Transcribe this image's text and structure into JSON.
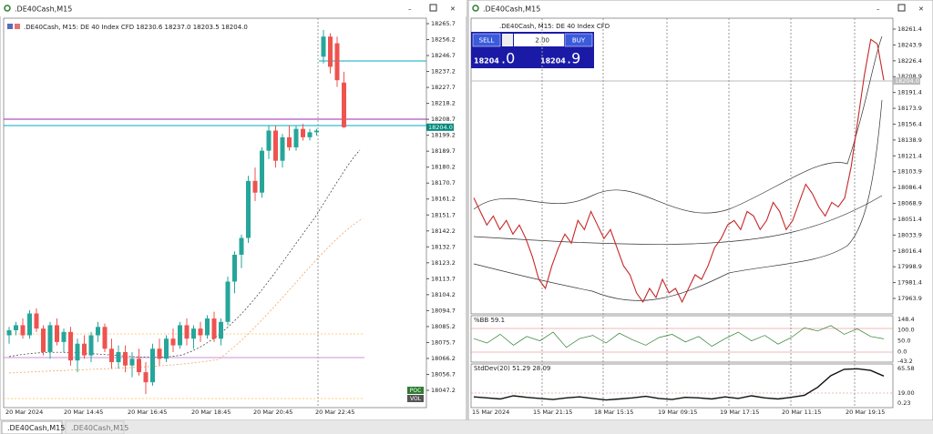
{
  "windows": [
    {
      "title": ".DE40Cash,M15",
      "info": ".DE40Cash, M15:  DE 40 Index CFD  18230.6 18237.0 18203.5 18204.0",
      "price_axis": [
        "18265.7",
        "18256.2",
        "18246.7",
        "18237.2",
        "18227.7",
        "18218.2",
        "18208.7",
        "18199.2",
        "18189.7",
        "18180.2",
        "18170.7",
        "18161.2",
        "18151.7",
        "18142.2",
        "18132.7",
        "18123.2",
        "18113.7",
        "18104.2",
        "18094.7",
        "18085.2",
        "18075.7",
        "18066.2",
        "18056.7",
        "18047.2"
      ],
      "current_price": "18204.0",
      "time_labels": [
        "20 Mar 2024",
        "20 Mar 14:45",
        "20 Mar 16:45",
        "20 Mar 18:45",
        "20 Mar 20:45",
        "20 Mar 22:45"
      ],
      "buttons": [
        "POC",
        "VOL"
      ],
      "candles": [
        [
          18080,
          18085,
          18075,
          18083
        ],
        [
          18083,
          18088,
          18080,
          18086
        ],
        [
          18086,
          18090,
          18078,
          18080
        ],
        [
          18080,
          18095,
          18078,
          18093
        ],
        [
          18093,
          18096,
          18082,
          18084
        ],
        [
          18084,
          18086,
          18068,
          18070
        ],
        [
          18070,
          18088,
          18066,
          18086
        ],
        [
          18086,
          18090,
          18074,
          18076
        ],
        [
          18076,
          18084,
          18070,
          18082
        ],
        [
          18082,
          18085,
          18062,
          18065
        ],
        [
          18065,
          18078,
          18058,
          18075
        ],
        [
          18075,
          18080,
          18066,
          18068
        ],
        [
          18068,
          18082,
          18064,
          18080
        ],
        [
          18080,
          18088,
          18076,
          18085
        ],
        [
          18085,
          18087,
          18070,
          18072
        ],
        [
          18072,
          18078,
          18060,
          18064
        ],
        [
          18064,
          18074,
          18060,
          18070
        ],
        [
          18070,
          18074,
          18058,
          18062
        ],
        [
          18062,
          18070,
          18055,
          18066
        ],
        [
          18066,
          18072,
          18056,
          18058
        ],
        [
          18058,
          18064,
          18045,
          18052
        ],
        [
          18052,
          18075,
          18050,
          18072
        ],
        [
          18072,
          18078,
          18062,
          18066
        ],
        [
          18066,
          18080,
          18064,
          18078
        ],
        [
          18078,
          18084,
          18070,
          18074
        ],
        [
          18074,
          18088,
          18072,
          18086
        ],
        [
          18086,
          18090,
          18074,
          18078
        ],
        [
          18078,
          18086,
          18072,
          18084
        ],
        [
          18084,
          18088,
          18076,
          18080
        ],
        [
          18080,
          18092,
          18078,
          18090
        ],
        [
          18090,
          18094,
          18076,
          18078
        ],
        [
          18078,
          18090,
          18074,
          18088
        ],
        [
          18088,
          18115,
          18086,
          18112
        ],
        [
          18112,
          18130,
          18105,
          18128
        ],
        [
          18128,
          18140,
          18120,
          18138
        ],
        [
          18138,
          18175,
          18135,
          18172
        ],
        [
          18172,
          18180,
          18160,
          18165
        ],
        [
          18165,
          18192,
          18162,
          18190
        ],
        [
          18190,
          18205,
          18185,
          18202
        ],
        [
          18202,
          18205,
          18180,
          18184
        ],
        [
          18184,
          18200,
          18180,
          18198
        ],
        [
          18198,
          18205,
          18190,
          18192
        ],
        [
          18192,
          18205,
          18190,
          18203
        ],
        [
          18203,
          18206,
          18196,
          18198
        ],
        [
          18198,
          18203,
          18196,
          18201
        ],
        [
          18201,
          18203,
          18199,
          18202
        ],
        [
          18246,
          18262,
          18242,
          18258
        ],
        [
          18258,
          18260,
          18236,
          18240
        ],
        [
          18254,
          18258,
          18228,
          18232
        ],
        [
          18230.6,
          18237.0,
          18203.5,
          18204.0
        ]
      ]
    },
    {
      "title": ".DE40Cash,M15",
      "info": ".DE40Cash, M15:  DE 40 Index CFD",
      "trade_panel": {
        "sell": "SELL",
        "buy": "BUY",
        "volume": "2.00",
        "sell_main": "18204",
        "sell_frac": ".0",
        "buy_main": "18204",
        "buy_frac": ".9"
      },
      "price_axis": [
        "18261.4",
        "18243.9",
        "18226.4",
        "18208.9",
        "18191.4",
        "18173.9",
        "18156.4",
        "18138.9",
        "18121.4",
        "18103.9",
        "18086.4",
        "18068.9",
        "18051.4",
        "18033.9",
        "18016.4",
        "17998.9",
        "17981.4",
        "17963.9"
      ],
      "current_price": "18204.0",
      "time_labels": [
        "15 Mar 2024",
        "15 Mar 21:15",
        "18 Mar 15:15",
        "19 Mar 09:15",
        "19 Mar 17:15",
        "20 Mar 11:15",
        "20 Mar 19:15"
      ],
      "closes": [
        18075,
        18060,
        18045,
        18055,
        18040,
        18050,
        18035,
        18045,
        18030,
        18010,
        17985,
        17975,
        18000,
        18020,
        18035,
        18025,
        18050,
        18040,
        18060,
        18045,
        18030,
        18040,
        18020,
        18000,
        17990,
        17970,
        17960,
        17975,
        17965,
        17985,
        17970,
        17975,
        17960,
        17975,
        17990,
        17985,
        18000,
        18020,
        18030,
        18045,
        18050,
        18040,
        18060,
        18055,
        18040,
        18050,
        18070,
        18060,
        18040,
        18050,
        18070,
        18090,
        18080,
        18065,
        18055,
        18070,
        18065,
        18075,
        18110,
        18160,
        18210,
        18250,
        18245,
        18205
      ],
      "bb_panel": {
        "title": "%BB 59.1",
        "axis": [
          "148.4",
          "100.0",
          "50.0",
          "0.0",
          "-43.2"
        ],
        "values": [
          60,
          40,
          80,
          30,
          70,
          50,
          90,
          20,
          60,
          75,
          40,
          85,
          55,
          30,
          65,
          80,
          45,
          70,
          25,
          60,
          90,
          50,
          75,
          35,
          65,
          110,
          95,
          120,
          80,
          105,
          70,
          59.1
        ]
      },
      "std_panel": {
        "title": "StdDev(20) 51.29 28.09",
        "axis": [
          "65.58",
          "19.00",
          "0.23"
        ],
        "values": [
          12,
          10,
          8,
          14,
          11,
          9,
          7,
          10,
          12,
          9,
          6,
          8,
          10,
          13,
          9,
          7,
          11,
          10,
          8,
          12,
          9,
          14,
          10,
          8,
          11,
          15,
          30,
          52,
          64,
          65,
          62,
          51.29
        ]
      }
    }
  ],
  "tabs": [
    ".DE40Cash,M15",
    ".DE40Cash,M15"
  ]
}
